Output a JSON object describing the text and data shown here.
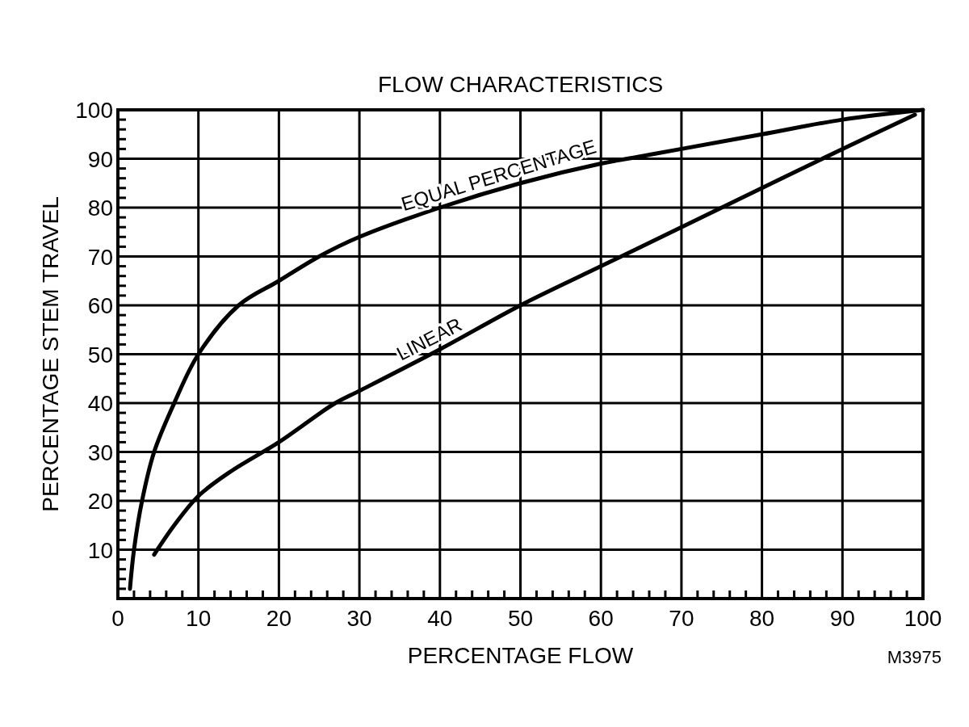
{
  "chart_data": {
    "type": "line",
    "title": "FLOW CHARACTERISTICS",
    "xlabel": "PERCENTAGE FLOW",
    "ylabel": "PERCENTAGE STEM TRAVEL",
    "xlim": [
      0,
      100
    ],
    "ylim": [
      0,
      100
    ],
    "xticks": [
      0,
      {
        "value": 2,
        "label": null
      },
      {
        "value": 4,
        "label": null
      },
      {
        "value": 6,
        "label": null
      },
      {
        "value": 8,
        "label": null
      },
      10,
      {
        "value": 12,
        "label": null
      },
      {
        "value": 14,
        "label": null
      },
      {
        "value": 16,
        "label": null
      },
      {
        "value": 18,
        "label": null
      },
      20,
      {
        "value": 22,
        "label": null
      },
      {
        "value": 24,
        "label": null
      },
      {
        "value": 26,
        "label": null
      },
      {
        "value": 28,
        "label": null
      },
      30,
      {
        "value": 32,
        "label": null
      },
      {
        "value": 34,
        "label": null
      },
      {
        "value": 36,
        "label": null
      },
      {
        "value": 38,
        "label": null
      },
      40,
      {
        "value": 42,
        "label": null
      },
      {
        "value": 44,
        "label": null
      },
      {
        "value": 46,
        "label": null
      },
      {
        "value": 48,
        "label": null
      },
      50,
      {
        "value": 52,
        "label": null
      },
      {
        "value": 54,
        "label": null
      },
      {
        "value": 56,
        "label": null
      },
      {
        "value": 58,
        "label": null
      },
      60,
      {
        "value": 62,
        "label": null
      },
      {
        "value": 64,
        "label": null
      },
      {
        "value": 66,
        "label": null
      },
      {
        "value": 68,
        "label": null
      },
      70,
      {
        "value": 72,
        "label": null
      },
      {
        "value": 74,
        "label": null
      },
      {
        "value": 76,
        "label": null
      },
      {
        "value": 78,
        "label": null
      },
      80,
      {
        "value": 82,
        "label": null
      },
      {
        "value": 84,
        "label": null
      },
      {
        "value": 86,
        "label": null
      },
      {
        "value": 88,
        "label": null
      },
      90,
      {
        "value": 92,
        "label": null
      },
      {
        "value": 94,
        "label": null
      },
      {
        "value": 96,
        "label": null
      },
      {
        "value": 98,
        "label": null
      },
      100
    ],
    "yticks": [
      {
        "value": 0,
        "label": null
      },
      {
        "value": 2,
        "label": null
      },
      {
        "value": 4,
        "label": null
      },
      {
        "value": 6,
        "label": null
      },
      {
        "value": 8,
        "label": null
      },
      10,
      {
        "value": 12,
        "label": null
      },
      {
        "value": 14,
        "label": null
      },
      {
        "value": 16,
        "label": null
      },
      {
        "value": 18,
        "label": null
      },
      20,
      {
        "value": 22,
        "label": null
      },
      {
        "value": 24,
        "label": null
      },
      {
        "value": 26,
        "label": null
      },
      {
        "value": 28,
        "label": null
      },
      30,
      {
        "value": 32,
        "label": null
      },
      {
        "value": 34,
        "label": null
      },
      {
        "value": 36,
        "label": null
      },
      {
        "value": 38,
        "label": null
      },
      40,
      {
        "value": 42,
        "label": null
      },
      {
        "value": 44,
        "label": null
      },
      {
        "value": 46,
        "label": null
      },
      {
        "value": 48,
        "label": null
      },
      50,
      {
        "value": 52,
        "label": null
      },
      {
        "value": 54,
        "label": null
      },
      {
        "value": 56,
        "label": null
      },
      {
        "value": 58,
        "label": null
      },
      60,
      {
        "value": 62,
        "label": null
      },
      {
        "value": 64,
        "label": null
      },
      {
        "value": 66,
        "label": null
      },
      {
        "value": 68,
        "label": null
      },
      70,
      {
        "value": 72,
        "label": null
      },
      {
        "value": 74,
        "label": null
      },
      {
        "value": 76,
        "label": null
      },
      {
        "value": 78,
        "label": null
      },
      80,
      {
        "value": 82,
        "label": null
      },
      {
        "value": 84,
        "label": null
      },
      {
        "value": 86,
        "label": null
      },
      {
        "value": 88,
        "label": null
      },
      90,
      {
        "value": 92,
        "label": null
      },
      {
        "value": 94,
        "label": null
      },
      {
        "value": 96,
        "label": null
      },
      {
        "value": 98,
        "label": null
      },
      100
    ],
    "grid": true,
    "marker": "none",
    "line_style": "solid",
    "series": [
      {
        "name": "EQUAL PERCENTAGE",
        "color": "#000000",
        "x": [
          1.5,
          2,
          3,
          4.5,
          7,
          10,
          15,
          20,
          25,
          30,
          40,
          50,
          60,
          65,
          70,
          80,
          90,
          100
        ],
        "values": [
          2,
          10,
          20,
          30,
          40,
          50,
          60,
          65,
          70,
          74,
          80,
          85,
          89,
          90.5,
          92,
          95,
          98,
          100
        ]
      },
      {
        "name": "LINEAR",
        "color": "#000000",
        "x": [
          4.5,
          7,
          10,
          14,
          20,
          27,
          30,
          40,
          50,
          60,
          70,
          80,
          90,
          99
        ],
        "values": [
          9,
          15,
          21,
          26,
          32,
          40,
          42.5,
          51,
          60,
          68,
          76,
          84,
          92,
          99
        ]
      }
    ],
    "annotations": [
      "M3975"
    ]
  }
}
